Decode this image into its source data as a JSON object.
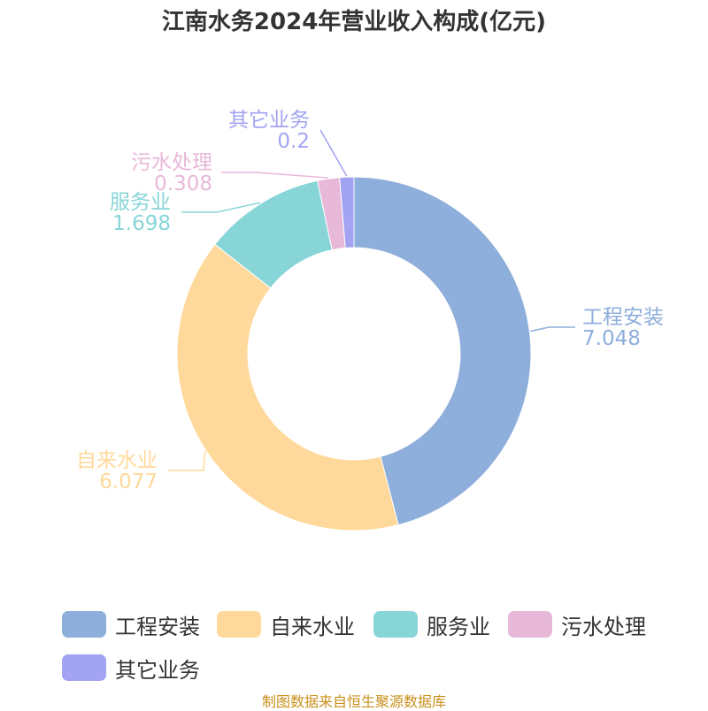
{
  "title": "江南水务2024年营业收入构成(亿元)",
  "source": "制图数据来自恒生聚源数据库",
  "chart_data": {
    "type": "pie",
    "donut": true,
    "legend_position": "bottom",
    "slices": [
      {
        "label": "工程安装",
        "value": 7.048,
        "color": "#8eaedb"
      },
      {
        "label": "自来水业",
        "value": 6.077,
        "color": "#ffd99b"
      },
      {
        "label": "服务业",
        "value": 1.698,
        "color": "#88d5d8"
      },
      {
        "label": "污水处理",
        "value": 0.308,
        "color": "#e8b8d8"
      },
      {
        "label": "其它业务",
        "value": 0.2,
        "color": "#a2a3f2"
      }
    ]
  }
}
